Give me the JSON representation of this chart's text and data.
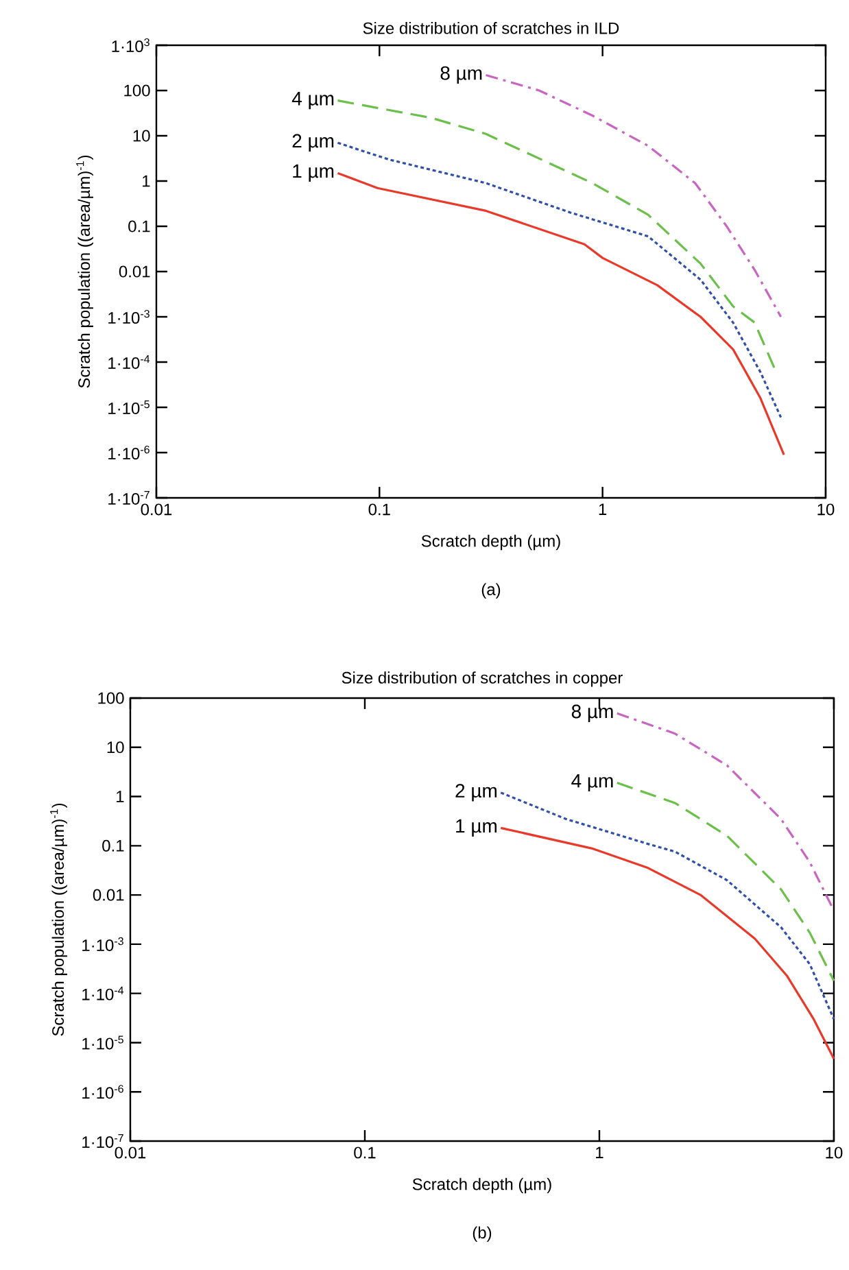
{
  "chart_data": [
    {
      "type": "line",
      "title": "Size distribution of scratches in ILD",
      "xlabel": "Scratch depth (µm)",
      "ylabel": "Scratch population ((area/µm)$^{-1}$)",
      "annotations": [
        "(a)"
      ],
      "log": "xy",
      "xlim": [
        0.01,
        10
      ],
      "ylim": [
        1e-07,
        1000
      ],
      "xticks": [
        0.01,
        0.1,
        1,
        10
      ],
      "yticks": [
        {
          "value": 1e-07,
          "label": "1·10$^{-7}$"
        },
        {
          "value": 1e-06,
          "label": "1·10$^{-6}$"
        },
        {
          "value": 1e-05,
          "label": "1·10$^{-5}$"
        },
        {
          "value": 0.0001,
          "label": "1·10$^{-4}$"
        },
        {
          "value": 0.001,
          "label": "1·10$^{-3}$"
        },
        0.01,
        0.1,
        1,
        10,
        100,
        {
          "value": 1000,
          "label": "1·10$^{3}$"
        }
      ],
      "series": [
        {
          "name": "1 µm",
          "color": "#e8392a",
          "line_style": "solid",
          "x": [
            0.065,
            0.098,
            0.3,
            0.83,
            1.0,
            1.76,
            2.75,
            3.85,
            5.1,
            6.5
          ],
          "values": [
            1.5,
            0.7,
            0.22,
            0.04,
            0.02,
            0.005,
            0.001,
            0.00019,
            1.6e-05,
            9e-07
          ]
        },
        {
          "name": "2 µm",
          "color": "#2f4fa8",
          "line_style": "dotted",
          "x": [
            0.065,
            0.11,
            0.3,
            0.72,
            1.6,
            2.75,
            3.85,
            5.1,
            6.3
          ],
          "values": [
            7,
            3,
            0.9,
            0.2,
            0.06,
            0.0066,
            0.00074,
            6e-05,
            6e-06
          ]
        },
        {
          "name": "4 µm",
          "color": "#6cbf4a",
          "line_style": "dashed",
          "x": [
            0.065,
            0.17,
            0.3,
            0.9,
            1.6,
            2.75,
            3.85,
            4.8,
            6.0
          ],
          "values": [
            60,
            25,
            11,
            0.9,
            0.18,
            0.015,
            0.0017,
            0.00075,
            6e-05
          ]
        },
        {
          "name": "8 µm",
          "color": "#c865c0",
          "line_style": "dashdot",
          "x": [
            0.3,
            0.52,
            0.9,
            1.6,
            2.6,
            3.6,
            4.8,
            6.3
          ],
          "values": [
            220,
            100,
            28,
            6,
            0.9,
            0.1,
            0.011,
            0.001
          ]
        }
      ]
    },
    {
      "type": "line",
      "title": "Size distribution of scratches in copper",
      "xlabel": "Scratch depth (µm)",
      "ylabel": "Scratch population ((area/µm)$^{-1}$)",
      "annotations": [
        "(b)"
      ],
      "log": "xy",
      "xlim": [
        0.01,
        10
      ],
      "ylim": [
        1e-07,
        100
      ],
      "xticks": [
        0.01,
        0.1,
        1,
        10
      ],
      "yticks": [
        {
          "value": 1e-07,
          "label": "1·10$^{-7}$"
        },
        {
          "value": 1e-06,
          "label": "1·10$^{-6}$"
        },
        {
          "value": 1e-05,
          "label": "1·10$^{-5}$"
        },
        {
          "value": 0.0001,
          "label": "1·10$^{-4}$"
        },
        {
          "value": 0.001,
          "label": "1·10$^{-3}$"
        },
        0.01,
        0.1,
        1,
        10,
        100
      ],
      "series": [
        {
          "name": "1 µm",
          "color": "#e8392a",
          "line_style": "solid",
          "x": [
            0.38,
            0.94,
            1.6,
            2.7,
            4.6,
            6.3,
            8.2,
            10
          ],
          "values": [
            0.23,
            0.087,
            0.036,
            0.01,
            0.0013,
            0.00023,
            3e-05,
            4.7e-06
          ]
        },
        {
          "name": "2 µm",
          "color": "#2f4fa8",
          "line_style": "dotted",
          "x": [
            0.38,
            0.72,
            1.6,
            2.1,
            3.5,
            5.95,
            7.9,
            10
          ],
          "values": [
            1.2,
            0.35,
            0.11,
            0.076,
            0.02,
            0.0022,
            0.00039,
            3e-05
          ]
        },
        {
          "name": "4 µm",
          "color": "#6cbf4a",
          "line_style": "dashed",
          "x": [
            1.19,
            2.1,
            3.5,
            5.95,
            7.9,
            10
          ],
          "values": [
            1.9,
            0.74,
            0.16,
            0.013,
            0.0017,
            0.00018
          ]
        },
        {
          "name": "8 µm",
          "color": "#c865c0",
          "line_style": "dashdot",
          "x": [
            1.19,
            2.1,
            3.5,
            5.95,
            7.9,
            10
          ],
          "values": [
            49,
            19,
            4.3,
            0.35,
            0.046,
            0.0048
          ]
        }
      ]
    }
  ]
}
